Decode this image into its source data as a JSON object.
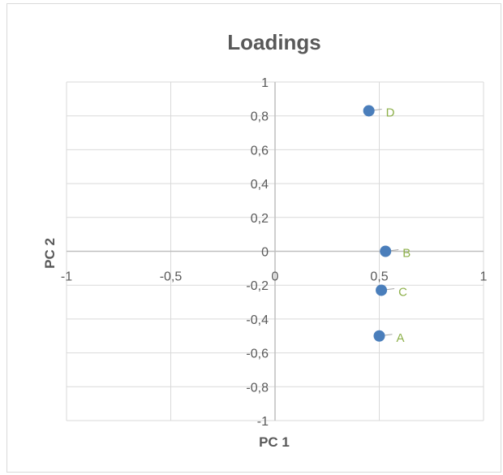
{
  "chart_data": {
    "type": "scatter",
    "title": "Loadings",
    "xlabel": "PC 1",
    "ylabel": "PC 2",
    "xlim": [
      -1,
      1
    ],
    "ylim": [
      -1,
      1
    ],
    "x_ticks": [
      "-1",
      "-0,5",
      "0",
      "0,5",
      "1"
    ],
    "y_ticks": [
      "1",
      "0,8",
      "0,6",
      "0,4",
      "0,2",
      "0",
      "-0,2",
      "-0,4",
      "-0,6",
      "-0,8",
      "-1"
    ],
    "grid": true,
    "legend": "none",
    "colors": {
      "marker": "#4a7ebb",
      "label": "#8db04a",
      "grid": "#d9d9d9",
      "axis": "#bfbfbf",
      "text": "#595959"
    },
    "points": [
      {
        "label": "D",
        "x": 0.45,
        "y": 0.83
      },
      {
        "label": "B",
        "x": 0.53,
        "y": 0.0
      },
      {
        "label": "C",
        "x": 0.51,
        "y": -0.23
      },
      {
        "label": "A",
        "x": 0.5,
        "y": -0.5
      }
    ]
  }
}
